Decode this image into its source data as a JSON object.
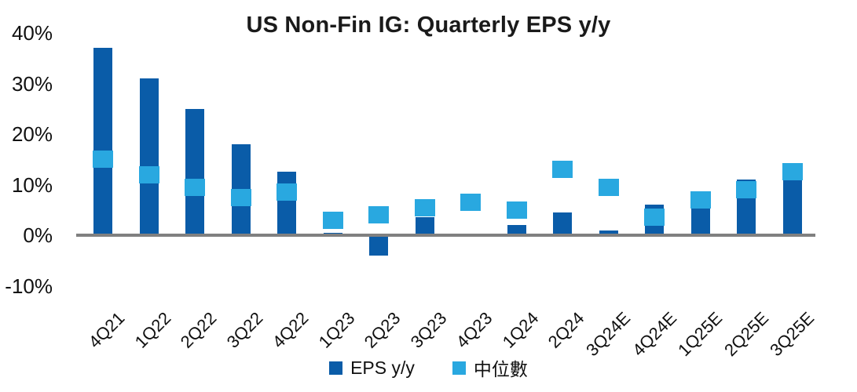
{
  "chart_data": {
    "type": "bar",
    "title": "US Non-Fin IG: Quarterly EPS y/y",
    "categories": [
      "4Q21",
      "1Q22",
      "2Q22",
      "3Q22",
      "4Q22",
      "1Q23",
      "2Q23",
      "3Q23",
      "4Q23",
      "1Q24",
      "2Q24",
      "3Q24E",
      "4Q24E",
      "1Q25E",
      "2Q25E",
      "3Q25E"
    ],
    "series": [
      {
        "name": "EPS y/y",
        "style": "column",
        "color": "#0a5ca8",
        "values": [
          37,
          31,
          25,
          18,
          12.5,
          0.5,
          -4,
          3.5,
          0,
          2,
          4.5,
          1,
          6,
          5.5,
          11,
          11
        ]
      },
      {
        "name": "中位數",
        "style": "square-marker",
        "color": "#29a8e0",
        "values": [
          15,
          12,
          9.5,
          7.5,
          8.5,
          3,
          4,
          5.5,
          6.5,
          5,
          13,
          9.5,
          3.5,
          7,
          9,
          12.5
        ]
      }
    ],
    "xlabel": "",
    "ylabel": "",
    "ylim": [
      -13,
      42
    ],
    "yticks": [
      40,
      30,
      20,
      10,
      0,
      -10
    ],
    "ytick_labels": [
      "40%",
      "30%",
      "20%",
      "10%",
      "0%",
      "-10%"
    ],
    "grid": false,
    "legend_position": "bottom",
    "x_label_rotation_deg": -45
  },
  "legend": {
    "items": [
      {
        "label": "EPS y/y",
        "color": "#0a5ca8"
      },
      {
        "label": "中位數",
        "color": "#29a8e0"
      }
    ]
  },
  "colors": {
    "bar_dark_blue": "#0a5ca8",
    "marker_light_blue": "#29a8e0",
    "axis_line_gray": "#808080",
    "text": "#111111",
    "background": "#ffffff"
  }
}
